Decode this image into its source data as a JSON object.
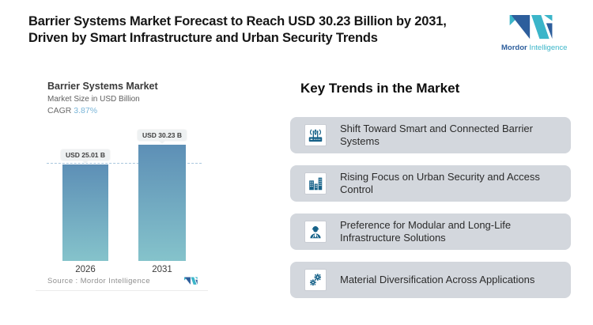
{
  "brand": {
    "navy": "#2d5e9c",
    "teal": "#3bb5c9"
  },
  "colors": {
    "card_bg": "#d3d7dd",
    "icon_blue": "#176289",
    "bar_top": "#5d8fb6",
    "bar_bottom": "#85c3cb",
    "dash_line": "#aac7de",
    "cagr_value_color": "#79b5d8"
  },
  "header": {
    "title_line1": "Barrier Systems Market Forecast to Reach USD 30.23 Billion by 2031,",
    "title_line2": "Driven by Smart Infrastructure and Urban Security Trends",
    "logo": {
      "brand_part1": "Mordor",
      "brand_part2": "Intelligence"
    }
  },
  "chart_panel": {
    "title": "Barrier Systems Market",
    "subtitle": "Market Size in USD Billion",
    "cagr_label": "CAGR",
    "cagr_value": "3.87%",
    "source_label": "Source :  Mordor Intelligence"
  },
  "chart_data": {
    "type": "bar",
    "title": "Barrier Systems Market",
    "subtitle": "Market Size in USD Billion",
    "unit": "USD Billion",
    "categories": [
      "2026",
      "2031"
    ],
    "values": [
      25.01,
      30.23
    ],
    "bar_labels": [
      "USD 25.01 B",
      "USD 30.23 B"
    ],
    "cagr_percent": 3.87,
    "ylim": [
      0,
      30.23
    ],
    "grid": false,
    "legend": false,
    "reference_line": {
      "at_value": 25.01,
      "style": "dashed"
    }
  },
  "trends": {
    "heading": "Key Trends in the Market",
    "items": [
      {
        "icon": "wireless-router-icon",
        "text": "Shift Toward Smart and Connected Barrier Systems"
      },
      {
        "icon": "city-buildings-icon",
        "text": "Rising Focus on Urban Security and Access Control"
      },
      {
        "icon": "engineer-icon",
        "text": "Preference for Modular and Long-Life Infrastructure Solutions"
      },
      {
        "icon": "gears-icon",
        "text": "Material Diversification Across Applications"
      }
    ]
  }
}
